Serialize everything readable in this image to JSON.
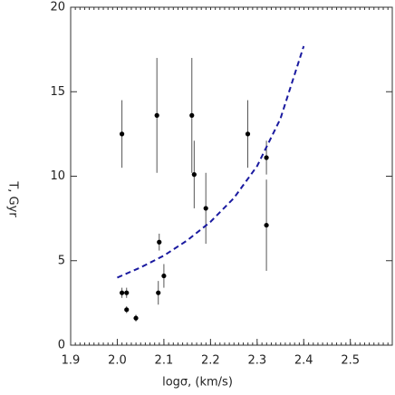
{
  "chart_data": {
    "type": "scatter",
    "x_label": "logσ, (km/s)",
    "y_label": "T, Gyr",
    "xlim": [
      1.9,
      2.59
    ],
    "ylim": [
      0,
      20
    ],
    "xticks": [
      1.9,
      {
        "value": 2.0,
        "label": "2.0"
      },
      2.1,
      2.2,
      2.3,
      2.4,
      2.5
    ],
    "yticks": [
      0,
      5,
      10,
      15,
      20
    ],
    "series": [
      {
        "color": "#000000",
        "x": [
          2.01,
          2.085,
          2.16,
          2.28,
          2.165,
          2.19,
          2.32,
          2.32,
          2.09,
          2.1,
          2.088,
          2.01,
          2.02,
          2.02,
          2.04
        ],
        "values": [
          12.5,
          13.6,
          13.6,
          12.5,
          10.1,
          8.1,
          11.1,
          7.1,
          6.1,
          4.1,
          3.1,
          3.1,
          3.1,
          2.1,
          1.6
        ],
        "errors": [
          2,
          3.4,
          3.4,
          2,
          2,
          2.1,
          1,
          2.7,
          0.5,
          0.7,
          0.7,
          0.3,
          0.3,
          0.2,
          0.2
        ]
      },
      {
        "type": "line",
        "color": "#1a1aa0",
        "x": [
          2.0,
          2.05,
          2.1,
          2.15,
          2.2,
          2.25,
          2.3,
          2.35,
          2.4
        ],
        "values": [
          4.0,
          4.6,
          5.3,
          6.2,
          7.3,
          8.7,
          10.6,
          13.4,
          17.7
        ]
      }
    ]
  }
}
